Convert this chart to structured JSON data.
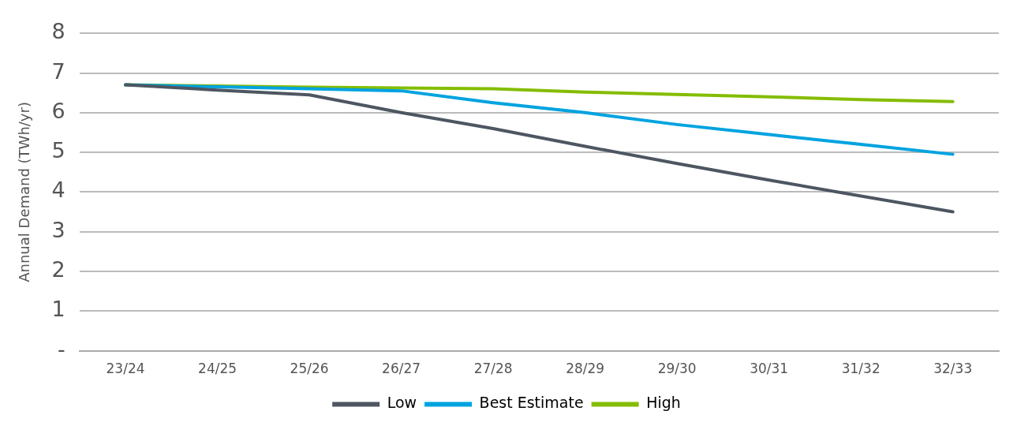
{
  "chart_data": {
    "type": "line",
    "ylabel": "Annual Demand (TWh/yr)",
    "categories": [
      "23/24",
      "24/25",
      "25/26",
      "26/27",
      "27/28",
      "28/29",
      "29/30",
      "30/31",
      "31/32",
      "32/33"
    ],
    "series": [
      {
        "name": "Low",
        "color": "#4d5661",
        "values": [
          6.7,
          6.57,
          6.45,
          6.0,
          5.6,
          5.15,
          4.72,
          4.3,
          3.9,
          3.5
        ]
      },
      {
        "name": "Best Estimate",
        "color": "#00a3e0",
        "values": [
          6.7,
          6.65,
          6.6,
          6.55,
          6.25,
          6.0,
          5.7,
          5.45,
          5.2,
          4.95
        ]
      },
      {
        "name": "High",
        "color": "#84bd00",
        "values": [
          6.7,
          6.67,
          6.64,
          6.62,
          6.6,
          6.52,
          6.46,
          6.4,
          6.33,
          6.28
        ]
      }
    ],
    "ylim": [
      0,
      8
    ],
    "yticks": [
      {
        "value": 0,
        "label": "-"
      },
      1,
      2,
      3,
      4,
      5,
      6,
      7,
      8
    ],
    "grid": "y",
    "legend": "bottom",
    "marker": "none",
    "line_style": "solid"
  }
}
